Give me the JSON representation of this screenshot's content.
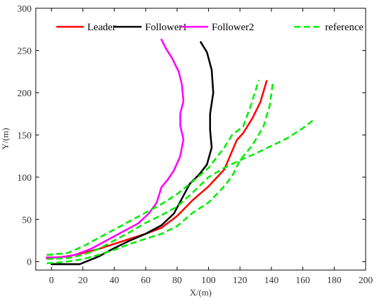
{
  "chart_data": {
    "type": "line",
    "xlabel": "X/(m)",
    "ylabel": "Y/(m)",
    "xlim": [
      -10,
      200
    ],
    "ylim": [
      -10,
      300
    ],
    "xticks": [
      0,
      20,
      40,
      60,
      80,
      100,
      120,
      140,
      160,
      180,
      200
    ],
    "yticks": [
      0,
      50,
      100,
      150,
      200,
      250,
      300
    ],
    "xtick_labels": [
      "0",
      "20",
      "40",
      "60",
      "80",
      "100",
      "120",
      "140",
      "160",
      "180",
      "200"
    ],
    "ytick_labels": [
      "0",
      "50",
      "100",
      "150",
      "200",
      "250",
      "300"
    ],
    "grid": false,
    "legend_position": "top",
    "series": [
      {
        "name": "Leader",
        "color": "#ff0000",
        "style": "solid",
        "x": [
          -3,
          10,
          20,
          30,
          40,
          50,
          60,
          70,
          80,
          90,
          100,
          110,
          118,
          122,
          128,
          133,
          137
        ],
        "y": [
          4,
          6,
          10,
          15,
          21,
          27,
          33,
          40,
          54,
          73,
          89,
          109,
          144,
          152,
          170,
          189,
          214
        ]
      },
      {
        "name": "Follower1",
        "color": "#000000",
        "style": "solid",
        "x": [
          0,
          10,
          18,
          22,
          30,
          40,
          50,
          60,
          70,
          78,
          84,
          88,
          94,
          99,
          102,
          101,
          101,
          103,
          102,
          99,
          95
        ],
        "y": [
          -3,
          -3,
          -3,
          0,
          6,
          16,
          25,
          33,
          43,
          57,
          78,
          92,
          103,
          115,
          135,
          156,
          175,
          200,
          227,
          248,
          260
        ]
      },
      {
        "name": "Follower2",
        "color": "#ff00ff",
        "style": "solid",
        "x": [
          -3,
          5,
          15,
          25,
          35,
          45,
          55,
          62,
          67,
          70,
          74,
          78,
          82,
          84,
          82,
          82,
          84,
          83,
          81,
          77,
          73,
          70
        ],
        "y": [
          5,
          5,
          8,
          15,
          25,
          35,
          45,
          57,
          70,
          88,
          97,
          108,
          125,
          145,
          161,
          175,
          190,
          210,
          225,
          240,
          252,
          263
        ]
      },
      {
        "name": "reference",
        "color": "#00ee00",
        "style": "dashed",
        "x": [
          -3,
          10,
          20,
          30,
          40,
          50,
          60,
          70,
          80,
          90,
          100,
          110,
          115,
          122,
          127,
          132
        ],
        "y": [
          8,
          10,
          18,
          28,
          38,
          48,
          58,
          68,
          80,
          95,
          111,
          135,
          150,
          160,
          185,
          215
        ]
      },
      {
        "name": "",
        "color": "#00ee00",
        "style": "dashed",
        "x": [
          -3,
          10,
          20,
          30,
          40,
          50,
          60,
          70,
          80,
          90,
          100,
          108,
          115,
          120,
          128,
          135,
          139,
          141
        ],
        "y": [
          -2,
          0,
          3,
          8,
          14,
          21,
          27,
          33,
          42,
          58,
          70,
          85,
          101,
          120,
          138,
          160,
          185,
          212
        ]
      },
      {
        "name": "",
        "color": "#00ee00",
        "style": "dashed",
        "x": [
          -3,
          10,
          20,
          30,
          40,
          50,
          60,
          70,
          80,
          90,
          100,
          110,
          120,
          130,
          140,
          150,
          160,
          167
        ],
        "y": [
          3,
          4,
          8,
          15,
          25,
          35,
          46,
          55,
          65,
          82,
          100,
          111,
          120,
          128,
          137,
          146,
          158,
          168
        ]
      }
    ]
  }
}
